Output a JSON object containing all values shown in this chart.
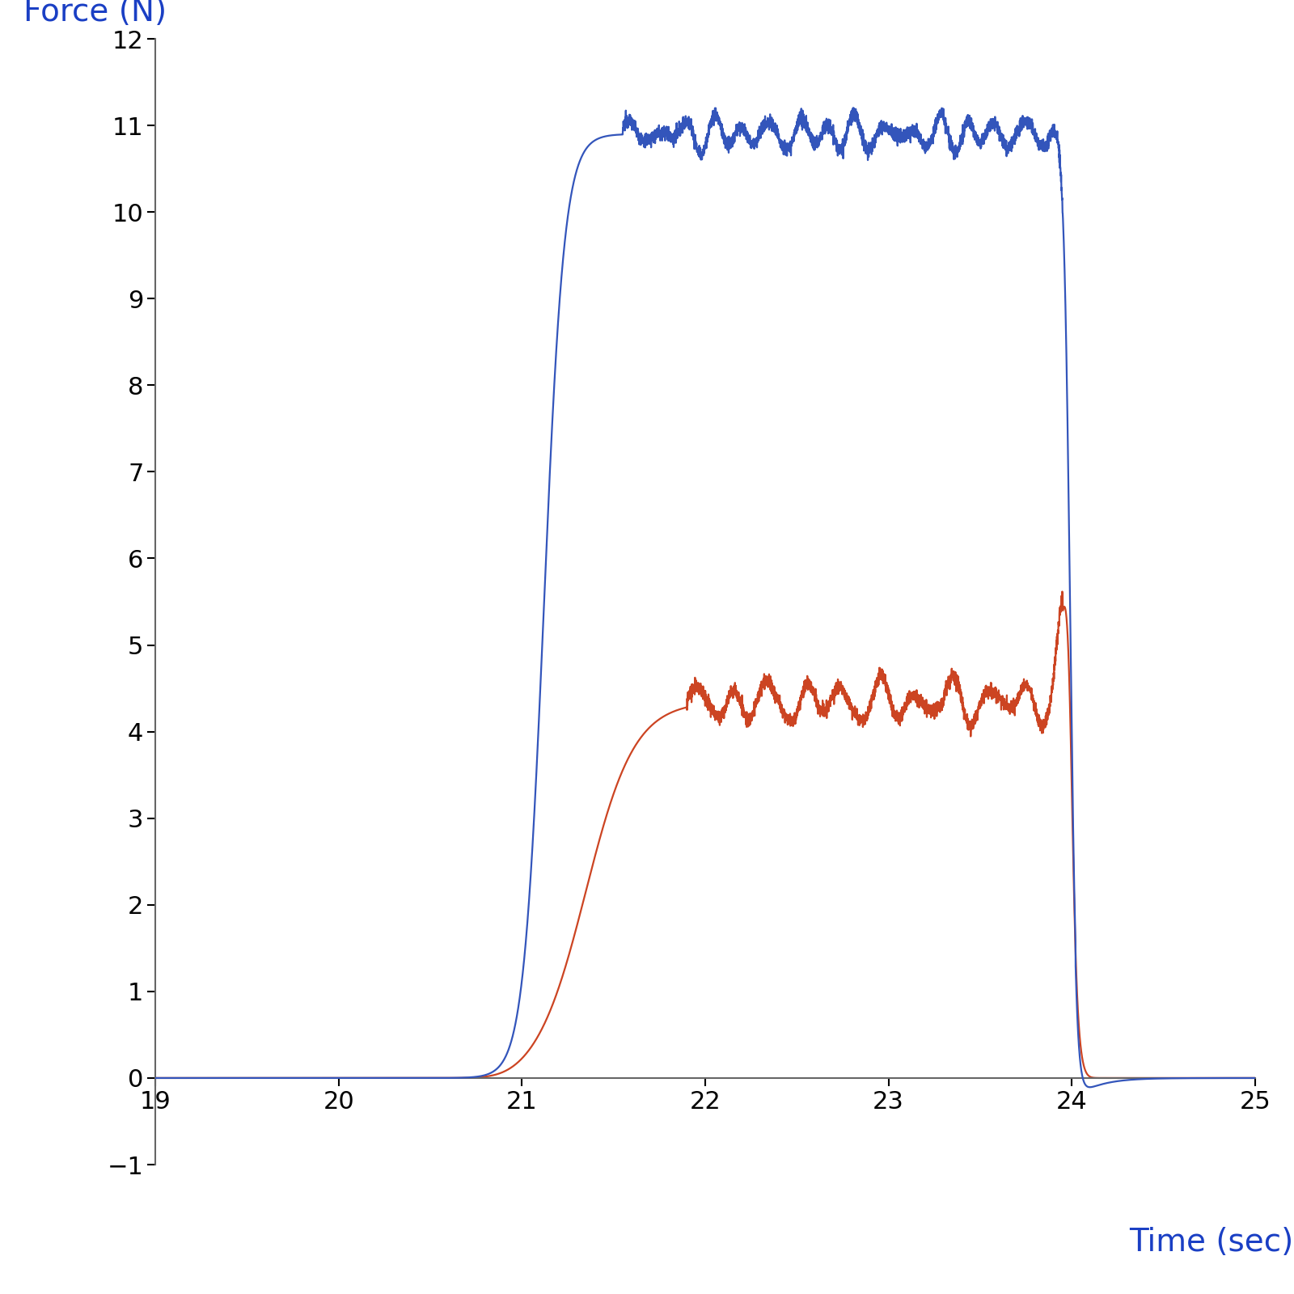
{
  "title": "",
  "xlabel": "Time (sec)",
  "ylabel": "Force (N)",
  "xlabel_color": "#1a3fc4",
  "ylabel_color": "#1a3fc4",
  "xlim": [
    19,
    25
  ],
  "ylim": [
    -1,
    12
  ],
  "xticks": [
    19,
    20,
    21,
    22,
    23,
    24,
    25
  ],
  "yticks": [
    -1,
    0,
    1,
    2,
    3,
    4,
    5,
    6,
    7,
    8,
    9,
    10,
    11,
    12
  ],
  "blue_color": "#3355bb",
  "red_color": "#cc4422",
  "background_color": "#ffffff",
  "tick_label_fontsize": 22,
  "axis_label_fontsize": 28,
  "linewidth": 1.6
}
